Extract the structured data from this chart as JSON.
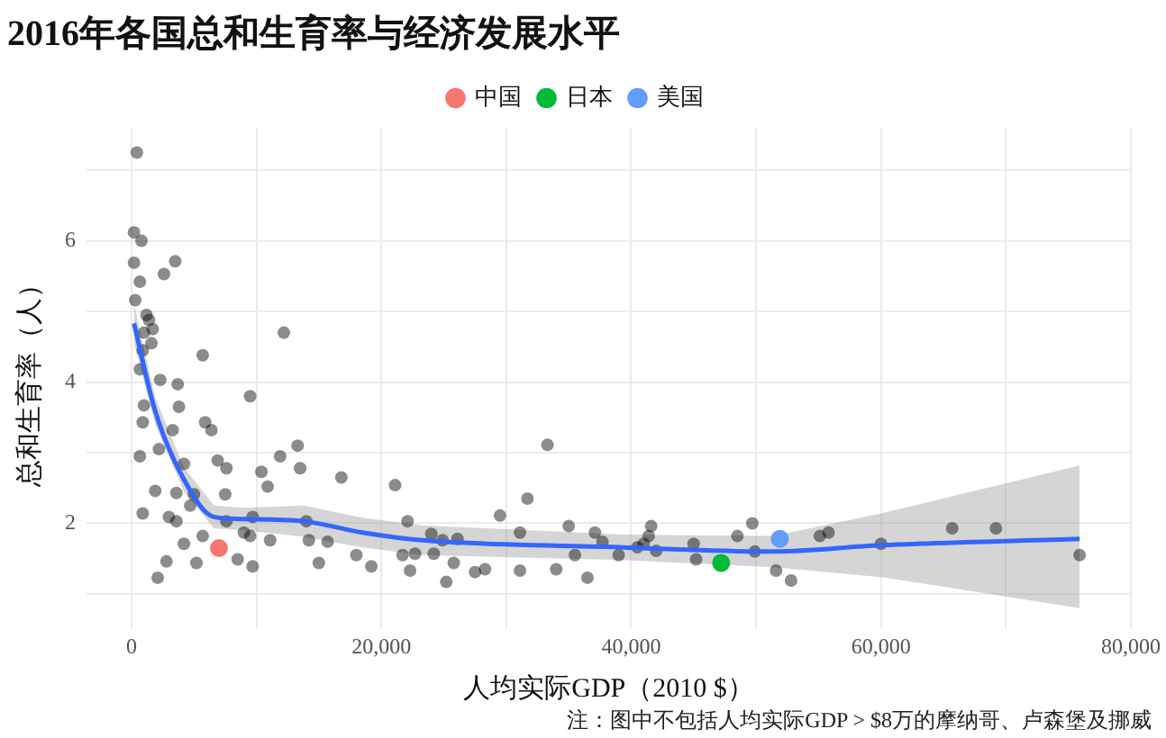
{
  "chart_data": {
    "type": "scatter",
    "title": "2016年各国总和生育率与经济发展水平",
    "xlabel": "人均实际GDP（2010 $）",
    "ylabel": "总和生育率（人）",
    "annotations": [
      "注：图中不包括人均实际GDP > $8万的摩纳哥、卢森堡及挪威"
    ],
    "xlim": [
      -3600,
      80000
    ],
    "xticks": [
      0,
      {
        "value": 10000,
        "label": null
      },
      {
        "value": 20000,
        "label": "20,000"
      },
      {
        "value": 30000,
        "label": null
      },
      {
        "value": 40000,
        "label": "40,000"
      },
      {
        "value": 50000,
        "label": null
      },
      {
        "value": 60000,
        "label": "60,000"
      },
      {
        "value": 70000,
        "label": null
      },
      {
        "value": 80000,
        "label": "80,000"
      }
    ],
    "ylim": [
      0.5,
      7.6
    ],
    "yticks": [
      {
        "value": 1,
        "label": null
      },
      2,
      {
        "value": 3,
        "label": null
      },
      4,
      {
        "value": 5,
        "label": null
      },
      6,
      {
        "value": 7,
        "label": null
      }
    ],
    "grid": true,
    "legend": "top",
    "marker": "circle",
    "series": [
      {
        "color": "#000000",
        "x": [
          430,
          200,
          800,
          200,
          3500,
          2600,
          670,
          300,
          1400,
          1200,
          1700,
          1000,
          12200,
          5700,
          900,
          1600,
          670,
          2300,
          3700,
          9500,
          3800,
          1000,
          900,
          3300,
          5900,
          6400,
          670,
          2200,
          4200,
          6900,
          7600,
          11900,
          13300,
          13500,
          10400,
          16800,
          21100,
          1900,
          3600,
          5000,
          7500,
          900,
          3000,
          3600,
          4700,
          5700,
          7600,
          9000,
          9500,
          11100,
          9700,
          10900,
          14000,
          14200,
          15000,
          15700,
          18000,
          19200,
          22100,
          22300,
          21700,
          8500,
          5200,
          4200,
          2800,
          2100,
          9700,
          33300,
          31700,
          29500,
          31100,
          35000,
          37100,
          37700,
          41600,
          41400,
          41000,
          40500,
          42000,
          39000,
          35500,
          34000,
          31100,
          36500,
          45000,
          45200,
          48500,
          49700,
          49900,
          51600,
          24000,
          24900,
          26100,
          24200,
          22700,
          25200,
          25800,
          27500,
          28300,
          52800,
          55100,
          55800,
          60000,
          65700,
          69200,
          75900
        ],
        "values": [
          7.25,
          6.12,
          6.0,
          5.69,
          5.71,
          5.53,
          5.42,
          5.16,
          4.88,
          4.95,
          4.75,
          4.7,
          4.7,
          4.38,
          4.45,
          4.55,
          4.18,
          4.03,
          3.97,
          3.8,
          3.65,
          3.67,
          3.43,
          3.32,
          3.43,
          3.32,
          2.95,
          3.05,
          2.84,
          2.89,
          2.78,
          2.95,
          3.1,
          2.78,
          2.73,
          2.65,
          2.54,
          2.46,
          2.43,
          2.41,
          2.41,
          2.14,
          2.09,
          2.03,
          2.25,
          1.82,
          2.03,
          1.87,
          1.82,
          1.76,
          2.09,
          2.52,
          2.03,
          1.76,
          1.44,
          1.74,
          1.55,
          1.39,
          2.03,
          1.33,
          1.55,
          1.49,
          1.44,
          1.71,
          1.46,
          1.23,
          1.39,
          3.11,
          2.35,
          2.11,
          1.87,
          1.96,
          1.87,
          1.74,
          1.96,
          1.82,
          1.71,
          1.66,
          1.61,
          1.55,
          1.55,
          1.35,
          1.33,
          1.23,
          1.71,
          1.49,
          1.82,
          2.0,
          1.6,
          1.33,
          1.85,
          1.76,
          1.78,
          1.57,
          1.57,
          1.17,
          1.44,
          1.31,
          1.35,
          1.19,
          1.82,
          1.87,
          1.71,
          1.93,
          1.93,
          1.55
        ]
      },
      {
        "type": "line",
        "marker": "none",
        "color": "#3366ff",
        "x": [
          200,
          1900,
          4200,
          6600,
          9000,
          13800,
          18500,
          23300,
          39400,
          51400,
          60000,
          75900
        ],
        "values": [
          4.83,
          3.59,
          2.62,
          2.09,
          2.06,
          2.03,
          1.87,
          1.76,
          1.66,
          1.6,
          1.69,
          1.78
        ],
        "lower": [
          4.55,
          3.4,
          2.45,
          1.93,
          1.9,
          1.81,
          1.66,
          1.55,
          1.48,
          1.38,
          1.24,
          0.8
        ],
        "upper": [
          5.11,
          3.78,
          2.79,
          2.25,
          2.22,
          2.25,
          2.08,
          1.97,
          1.84,
          1.82,
          2.14,
          2.82
        ]
      },
      {
        "name": "中国",
        "color": "#f8766d",
        "x": [
          7000
        ],
        "values": [
          1.65
        ]
      },
      {
        "name": "日本",
        "color": "#00ba38",
        "x": [
          47200
        ],
        "values": [
          1.44
        ]
      },
      {
        "name": "美国",
        "color": "#619cff",
        "x": [
          51900
        ],
        "values": [
          1.78
        ]
      }
    ]
  }
}
